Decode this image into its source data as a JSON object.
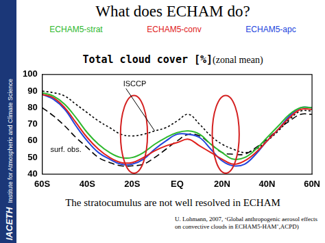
{
  "slide": {
    "title": "What does ECHAM do?",
    "caption": "The stratocumulus are not well resolved in ECHAM",
    "citation": "U. Lohmann, 2007, ‘Global anthropogenic aerosol effects on convective clouds in ECHAM5-HAM’,ACPD)",
    "sidebar": [
      "IACETH",
      "Institute for Atmospheric and Climate Science"
    ]
  },
  "chart_data": {
    "type": "line",
    "title": "Total cloud cover [%]",
    "subtitle": "(zonal mean)",
    "x": [
      -60,
      -55,
      -50,
      -45,
      -40,
      -35,
      -30,
      -25,
      -20,
      -15,
      -10,
      -5,
      0,
      5,
      10,
      15,
      20,
      25,
      30,
      35,
      40,
      45,
      50,
      55,
      60
    ],
    "series": [
      {
        "name": "ECHAM5-strat",
        "color": "#2db82d",
        "line_style": "solid",
        "values": [
          89,
          87,
          82,
          74,
          65,
          58,
          53,
          50,
          50,
          53,
          58,
          62,
          65,
          66,
          64,
          58,
          53,
          49,
          50,
          55,
          62,
          69,
          76,
          80,
          80
        ]
      },
      {
        "name": "ECHAM5-conv",
        "color": "#e0201c",
        "line_style": "solid",
        "values": [
          88,
          86,
          80,
          71,
          62,
          55,
          50,
          47,
          47,
          50,
          54,
          57,
          59,
          61,
          57,
          53,
          49,
          46,
          48,
          53,
          60,
          67,
          74,
          79,
          79
        ]
      },
      {
        "name": "ECHAM5-apc",
        "color": "#2244dd",
        "line_style": "solid",
        "values": [
          88,
          85,
          79,
          69,
          60,
          53,
          49,
          46,
          46,
          49,
          55,
          60,
          64,
          64,
          62,
          55,
          48,
          45,
          46,
          52,
          60,
          67,
          75,
          80,
          80
        ]
      },
      {
        "name": "ISCCP",
        "color": "#000000",
        "line_style": "dotted",
        "values": [
          90,
          89,
          87,
          82,
          77,
          72,
          68,
          64,
          63,
          64,
          66,
          68,
          72,
          76,
          70,
          63,
          58,
          55,
          53,
          55,
          60,
          66,
          73,
          78,
          78
        ]
      },
      {
        "name": "surf. obs.",
        "color": "#000000",
        "line_style": "dashed",
        "values": [
          80,
          75,
          69,
          62,
          56,
          50,
          47,
          45,
          45,
          46,
          50,
          55,
          60,
          64,
          63,
          58,
          53,
          52,
          52,
          56,
          61,
          67,
          72,
          76,
          76
        ]
      }
    ],
    "xlim": [
      -60,
      60
    ],
    "xticks": [
      {
        "value": -60,
        "label": "60S"
      },
      {
        "value": -40,
        "label": "40S"
      },
      {
        "value": -20,
        "label": "20S"
      },
      {
        "value": 0,
        "label": "EQ"
      },
      {
        "value": 20,
        "label": "20N"
      },
      {
        "value": 40,
        "label": "40N"
      },
      {
        "value": 60,
        "label": "60N"
      }
    ],
    "ylim": [
      40,
      100
    ],
    "yticks": [
      40,
      50,
      60,
      70,
      80,
      90,
      100
    ],
    "grid": false,
    "legend": "top",
    "annotations": [
      "ISCCP",
      "surf. obs."
    ]
  }
}
